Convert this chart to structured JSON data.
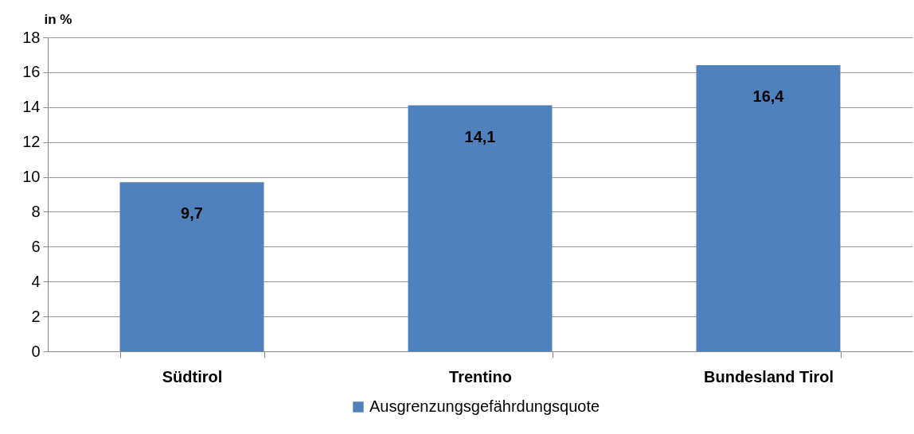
{
  "chart_data": {
    "type": "bar",
    "ylabel": "in %",
    "categories": [
      "Südtirol",
      "Trentino",
      "Bundesland Tirol"
    ],
    "series": [
      {
        "name": "Ausgrenzungsgefährdungsquote",
        "color": "#4f81bd",
        "values": [
          9.7,
          14.1,
          16.4
        ],
        "value_labels": [
          "9,7",
          "14,1",
          "16,4"
        ]
      }
    ],
    "ylim": [
      0,
      18
    ],
    "yticks": [
      0,
      2,
      4,
      6,
      8,
      10,
      12,
      14,
      16,
      18
    ],
    "grid": "y",
    "legend": "bottom"
  }
}
